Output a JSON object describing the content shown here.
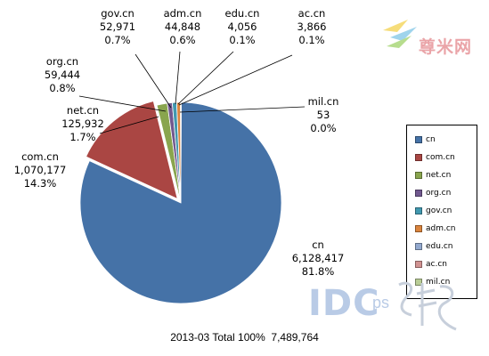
{
  "chart_data": {
    "type": "pie",
    "title": "",
    "footer": {
      "period": "2013-03",
      "total_label": "Total 100%",
      "total_value": "7,489,764"
    },
    "slices": [
      {
        "name": "cn",
        "value": 6128417,
        "value_label": "6,128,417",
        "percent_label": "81.8%",
        "color": "#4572a7"
      },
      {
        "name": "com.cn",
        "value": 1070177,
        "value_label": "1,070,177",
        "percent_label": "14.3%",
        "color": "#aa4643"
      },
      {
        "name": "net.cn",
        "value": 125932,
        "value_label": "125,932",
        "percent_label": "1.7%",
        "color": "#89a54e"
      },
      {
        "name": "org.cn",
        "value": 59444,
        "value_label": "59,444",
        "percent_label": "0.8%",
        "color": "#71588f"
      },
      {
        "name": "gov.cn",
        "value": 52971,
        "value_label": "52,971",
        "percent_label": "0.7%",
        "color": "#4198af"
      },
      {
        "name": "adm.cn",
        "value": 44848,
        "value_label": "44,848",
        "percent_label": "0.6%",
        "color": "#db843d"
      },
      {
        "name": "edu.cn",
        "value": 4056,
        "value_label": "4,056",
        "percent_label": "0.1%",
        "color": "#93a9cf"
      },
      {
        "name": "ac.cn",
        "value": 3866,
        "value_label": "3,866",
        "percent_label": "0.1%",
        "color": "#d19392"
      },
      {
        "name": "mil.cn",
        "value": 53,
        "value_label": "53",
        "percent_label": "0.0%",
        "color": "#b9cd96"
      }
    ],
    "legend_position": "right"
  },
  "watermarks": {
    "brand": "尊米网",
    "idc": "IDC",
    "ps": "ps"
  }
}
